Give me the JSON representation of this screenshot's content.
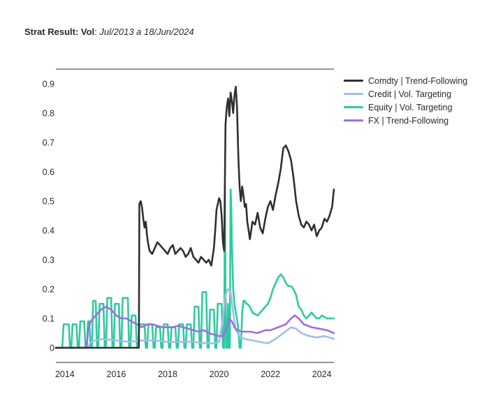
{
  "header": {
    "title_bold": "Strat Result: Vol",
    "title_sep": ": ",
    "title_italic": "Jul/2013 a 18/Jun/2024"
  },
  "chart_data": {
    "type": "line",
    "title": "Strat Result: Vol: Jul/2013 a 18/Jun/2024",
    "xlabel": "",
    "ylabel": "",
    "xlim": [
      2013.65,
      2024.47
    ],
    "ylim": [
      -0.05,
      0.95
    ],
    "x_ticks": [
      "2014",
      "2016",
      "2018",
      "2020",
      "2022",
      "2024"
    ],
    "y_ticks": [
      "0",
      "0.1",
      "0.2",
      "0.3",
      "0.4",
      "0.5",
      "0.6",
      "0.7",
      "0.8",
      "0.9"
    ],
    "grid": false,
    "legend_position": "right",
    "series": [
      {
        "name": "Comdty | Trend-Following",
        "color": "#2f2f2f",
        "x": [
          2013.65,
          2016.5,
          2016.85,
          2016.88,
          2016.9,
          2016.95,
          2017.0,
          2017.05,
          2017.1,
          2017.15,
          2017.2,
          2017.25,
          2017.3,
          2017.4,
          2017.5,
          2017.6,
          2017.7,
          2017.8,
          2017.9,
          2018.0,
          2018.1,
          2018.2,
          2018.3,
          2018.4,
          2018.5,
          2018.6,
          2018.7,
          2018.8,
          2018.9,
          2019.0,
          2019.1,
          2019.2,
          2019.3,
          2019.4,
          2019.5,
          2019.6,
          2019.7,
          2019.8,
          2019.85,
          2019.9,
          2020.0,
          2020.05,
          2020.1,
          2020.15,
          2020.2,
          2020.25,
          2020.3,
          2020.35,
          2020.4,
          2020.45,
          2020.5,
          2020.55,
          2020.6,
          2020.65,
          2020.7,
          2020.75,
          2020.8,
          2020.85,
          2020.9,
          2020.95,
          2021.0,
          2021.05,
          2021.1,
          2021.15,
          2021.2,
          2021.3,
          2021.4,
          2021.5,
          2021.6,
          2021.7,
          2021.8,
          2021.9,
          2022.0,
          2022.1,
          2022.2,
          2022.3,
          2022.4,
          2022.5,
          2022.6,
          2022.7,
          2022.8,
          2022.9,
          2023.0,
          2023.1,
          2023.2,
          2023.3,
          2023.4,
          2023.5,
          2023.6,
          2023.7,
          2023.8,
          2023.9,
          2024.0,
          2024.1,
          2024.2,
          2024.3,
          2024.4,
          2024.47
        ],
        "values": [
          0.0,
          0.0,
          0.0,
          0.0,
          0.49,
          0.5,
          0.48,
          0.44,
          0.41,
          0.43,
          0.38,
          0.35,
          0.33,
          0.32,
          0.34,
          0.36,
          0.35,
          0.34,
          0.33,
          0.32,
          0.34,
          0.35,
          0.32,
          0.33,
          0.34,
          0.33,
          0.31,
          0.32,
          0.34,
          0.31,
          0.3,
          0.29,
          0.31,
          0.3,
          0.29,
          0.3,
          0.28,
          0.34,
          0.4,
          0.47,
          0.51,
          0.5,
          0.45,
          0.36,
          0.33,
          0.76,
          0.82,
          0.85,
          0.79,
          0.87,
          0.84,
          0.8,
          0.86,
          0.89,
          0.82,
          0.65,
          0.55,
          0.5,
          0.55,
          0.52,
          0.48,
          0.49,
          0.43,
          0.4,
          0.37,
          0.43,
          0.42,
          0.46,
          0.41,
          0.39,
          0.44,
          0.48,
          0.5,
          0.47,
          0.52,
          0.56,
          0.61,
          0.68,
          0.69,
          0.67,
          0.64,
          0.58,
          0.5,
          0.45,
          0.42,
          0.41,
          0.43,
          0.42,
          0.4,
          0.42,
          0.38,
          0.4,
          0.41,
          0.44,
          0.43,
          0.45,
          0.48,
          0.54
        ]
      },
      {
        "name": "Credit | Vol. Targeting",
        "color": "#a3bde9",
        "x": [
          2013.65,
          2014.9,
          2015.0,
          2015.2,
          2015.5,
          2016.0,
          2016.5,
          2017.0,
          2017.5,
          2018.0,
          2018.5,
          2019.0,
          2019.5,
          2019.8,
          2020.0,
          2020.15,
          2020.25,
          2020.35,
          2020.45,
          2020.55,
          2020.65,
          2020.8,
          2021.0,
          2021.3,
          2021.6,
          2021.9,
          2022.2,
          2022.5,
          2022.8,
          2023.0,
          2023.2,
          2023.5,
          2023.8,
          2024.1,
          2024.47
        ],
        "values": [
          0.0,
          0.0,
          0.02,
          0.025,
          0.03,
          0.025,
          0.02,
          0.025,
          0.025,
          0.02,
          0.02,
          0.02,
          0.015,
          0.015,
          0.02,
          0.1,
          0.18,
          0.2,
          0.19,
          0.12,
          0.06,
          0.04,
          0.03,
          0.025,
          0.02,
          0.015,
          0.03,
          0.05,
          0.07,
          0.065,
          0.05,
          0.04,
          0.035,
          0.04,
          0.03
        ]
      },
      {
        "name": "Equity | Vol. Targeting",
        "color": "#30c9a0",
        "x": [
          2013.65,
          2013.9,
          2013.95,
          2014.15,
          2014.2,
          2014.25,
          2014.3,
          2014.45,
          2014.5,
          2014.55,
          2014.6,
          2014.75,
          2014.8,
          2014.85,
          2014.9,
          2014.95,
          2015.0,
          2015.05,
          2015.1,
          2015.2,
          2015.25,
          2015.3,
          2015.35,
          2015.5,
          2015.55,
          2015.6,
          2015.65,
          2015.8,
          2015.85,
          2015.9,
          2015.95,
          2016.1,
          2016.15,
          2016.2,
          2016.25,
          2016.45,
          2016.5,
          2016.55,
          2016.6,
          2016.75,
          2016.8,
          2016.85,
          2016.9,
          2017.1,
          2017.15,
          2017.2,
          2017.25,
          2017.4,
          2017.45,
          2017.5,
          2017.55,
          2017.7,
          2017.75,
          2017.8,
          2017.85,
          2018.0,
          2018.05,
          2018.1,
          2018.15,
          2018.3,
          2018.35,
          2018.4,
          2018.45,
          2018.6,
          2018.65,
          2018.7,
          2018.75,
          2018.9,
          2018.95,
          2019.0,
          2019.05,
          2019.2,
          2019.25,
          2019.3,
          2019.35,
          2019.5,
          2019.55,
          2019.6,
          2019.65,
          2019.8,
          2019.85,
          2019.9,
          2019.95,
          2020.1,
          2020.15,
          2020.2,
          2020.23,
          2020.25,
          2020.28,
          2020.32,
          2020.35,
          2020.38,
          2020.42,
          2020.45,
          2020.47,
          2020.5,
          2020.55,
          2020.6,
          2020.65,
          2020.7,
          2020.75,
          2020.8,
          2020.85,
          2020.9,
          2020.95,
          2021.0,
          2021.05,
          2021.1,
          2021.2,
          2021.3,
          2021.5,
          2021.7,
          2021.9,
          2022.0,
          2022.1,
          2022.2,
          2022.3,
          2022.4,
          2022.5,
          2022.6,
          2022.7,
          2022.8,
          2022.9,
          2023.0,
          2023.1,
          2023.2,
          2023.3,
          2023.4,
          2023.5,
          2023.6,
          2023.7,
          2023.8,
          2023.9,
          2024.0,
          2024.2,
          2024.47
        ],
        "values": [
          0.0,
          0.0,
          0.08,
          0.08,
          0.0,
          0.0,
          0.08,
          0.08,
          0.0,
          0.0,
          0.09,
          0.09,
          0.0,
          0.0,
          0.09,
          0.09,
          0.0,
          0.0,
          0.16,
          0.16,
          0.0,
          0.0,
          0.15,
          0.15,
          0.0,
          0.0,
          0.17,
          0.17,
          0.0,
          0.0,
          0.15,
          0.15,
          0.0,
          0.0,
          0.17,
          0.17,
          0.0,
          0.0,
          0.11,
          0.11,
          0.0,
          0.0,
          0.08,
          0.08,
          0.0,
          0.0,
          0.08,
          0.08,
          0.0,
          0.0,
          0.07,
          0.07,
          0.0,
          0.0,
          0.08,
          0.08,
          0.0,
          0.0,
          0.07,
          0.07,
          0.0,
          0.0,
          0.08,
          0.08,
          0.0,
          0.0,
          0.08,
          0.08,
          0.0,
          0.0,
          0.14,
          0.14,
          0.0,
          0.0,
          0.19,
          0.19,
          0.0,
          0.0,
          0.13,
          0.13,
          0.0,
          0.0,
          0.15,
          0.15,
          0.0,
          0.0,
          0.55,
          0.2,
          0.0,
          0.0,
          0.15,
          0.0,
          0.0,
          0.54,
          0.5,
          0.35,
          0.2,
          0.15,
          0.12,
          0.1,
          0.06,
          0.0,
          0.0,
          0.12,
          0.16,
          0.16,
          0.15,
          0.15,
          0.14,
          0.12,
          0.11,
          0.13,
          0.15,
          0.17,
          0.2,
          0.22,
          0.24,
          0.25,
          0.24,
          0.22,
          0.21,
          0.21,
          0.2,
          0.18,
          0.14,
          0.13,
          0.11,
          0.1,
          0.11,
          0.12,
          0.11,
          0.1,
          0.1,
          0.11,
          0.1,
          0.1
        ]
      },
      {
        "name": "FX | Trend-Following",
        "color": "#a06de0",
        "x": [
          2013.65,
          2014.85,
          2014.9,
          2015.0,
          2015.2,
          2015.4,
          2015.6,
          2015.8,
          2016.0,
          2016.2,
          2016.4,
          2016.6,
          2016.8,
          2017.0,
          2017.2,
          2017.4,
          2017.6,
          2017.8,
          2018.0,
          2018.2,
          2018.4,
          2018.6,
          2018.8,
          2019.0,
          2019.2,
          2019.4,
          2019.6,
          2019.8,
          2020.0,
          2020.15,
          2020.3,
          2020.4,
          2020.5,
          2020.6,
          2020.7,
          2020.9,
          2021.2,
          2021.5,
          2021.8,
          2022.0,
          2022.3,
          2022.6,
          2022.8,
          2022.95,
          2023.1,
          2023.3,
          2023.6,
          2023.9,
          2024.2,
          2024.47
        ],
        "values": [
          0.0,
          0.0,
          0.06,
          0.09,
          0.11,
          0.13,
          0.14,
          0.13,
          0.11,
          0.1,
          0.1,
          0.09,
          0.08,
          0.07,
          0.08,
          0.08,
          0.075,
          0.07,
          0.07,
          0.07,
          0.075,
          0.07,
          0.065,
          0.06,
          0.055,
          0.06,
          0.05,
          0.045,
          0.04,
          0.04,
          0.07,
          0.1,
          0.09,
          0.07,
          0.06,
          0.055,
          0.055,
          0.05,
          0.06,
          0.06,
          0.07,
          0.08,
          0.1,
          0.11,
          0.1,
          0.08,
          0.07,
          0.065,
          0.06,
          0.05
        ]
      }
    ]
  }
}
